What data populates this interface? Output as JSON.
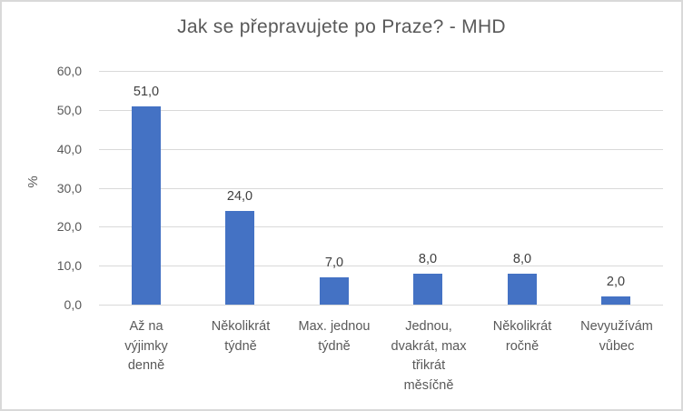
{
  "chart": {
    "background": "#FFFFFF",
    "border_color": "#D9D9D9"
  },
  "chart_data": {
    "type": "bar",
    "title": "Jak se přepravujete po Praze? - MHD",
    "xlabel": "",
    "ylabel": "%",
    "categories": [
      "Až na výjimky denně",
      "Několikrát týdně",
      "Max. jednou týdně",
      "Jednou, dvakrát, max třikrát měsíčně",
      "Několikrát ročně",
      "Nevyužívám vůbec"
    ],
    "category_label_lines": [
      [
        "Až na",
        "výjimky",
        "denně"
      ],
      [
        "Několikrát",
        "týdně"
      ],
      [
        "Max. jednou",
        "týdně"
      ],
      [
        "Jednou,",
        "dvakrát, max",
        "třikrát",
        "měsíčně"
      ],
      [
        "Několikrát",
        "ročně"
      ],
      [
        "Nevyužívám",
        "vůbec"
      ]
    ],
    "values": [
      51.0,
      24.0,
      7.0,
      8.0,
      8.0,
      2.0
    ],
    "value_labels": [
      "51,0",
      "24,0",
      "7,0",
      "8,0",
      "8,0",
      "2,0"
    ],
    "ylim": [
      0,
      60
    ],
    "y_tick_values": [
      0,
      10,
      20,
      30,
      40,
      50,
      60
    ],
    "y_tick_labels": [
      "0,0",
      "10,0",
      "20,0",
      "30,0",
      "40,0",
      "50,0",
      "60,0"
    ],
    "grid": true,
    "legend": "none",
    "decimal_separator": ",",
    "colors": {
      "bar": "#4472C4",
      "gridline": "#D9D9D9",
      "axis_text": "#595959",
      "title_text": "#595959",
      "data_label_text": "#404040"
    }
  }
}
